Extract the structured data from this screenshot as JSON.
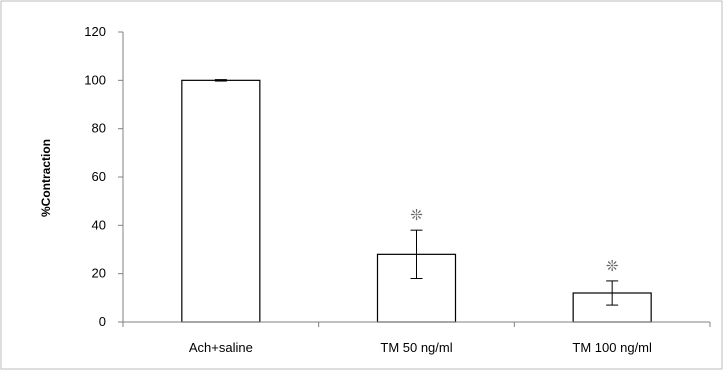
{
  "chart_data": {
    "type": "bar",
    "title": "",
    "xlabel": "",
    "ylabel": "%Contraction",
    "ylim": [
      0,
      120
    ],
    "yticks": [
      0,
      20,
      40,
      60,
      80,
      100,
      120
    ],
    "categories": [
      "Ach+saline",
      "TM 50 ng/ml",
      "TM 100 ng/ml"
    ],
    "values": [
      100,
      28,
      12
    ],
    "error": [
      0.3,
      10,
      5
    ],
    "significance": [
      "",
      "❊",
      "❊"
    ],
    "grid": false,
    "legend": "none"
  },
  "colors": {
    "bar_fill": "#ffffff",
    "bar_stroke": "#000000",
    "axis": "#808080",
    "frame": "#bdbdbd"
  }
}
